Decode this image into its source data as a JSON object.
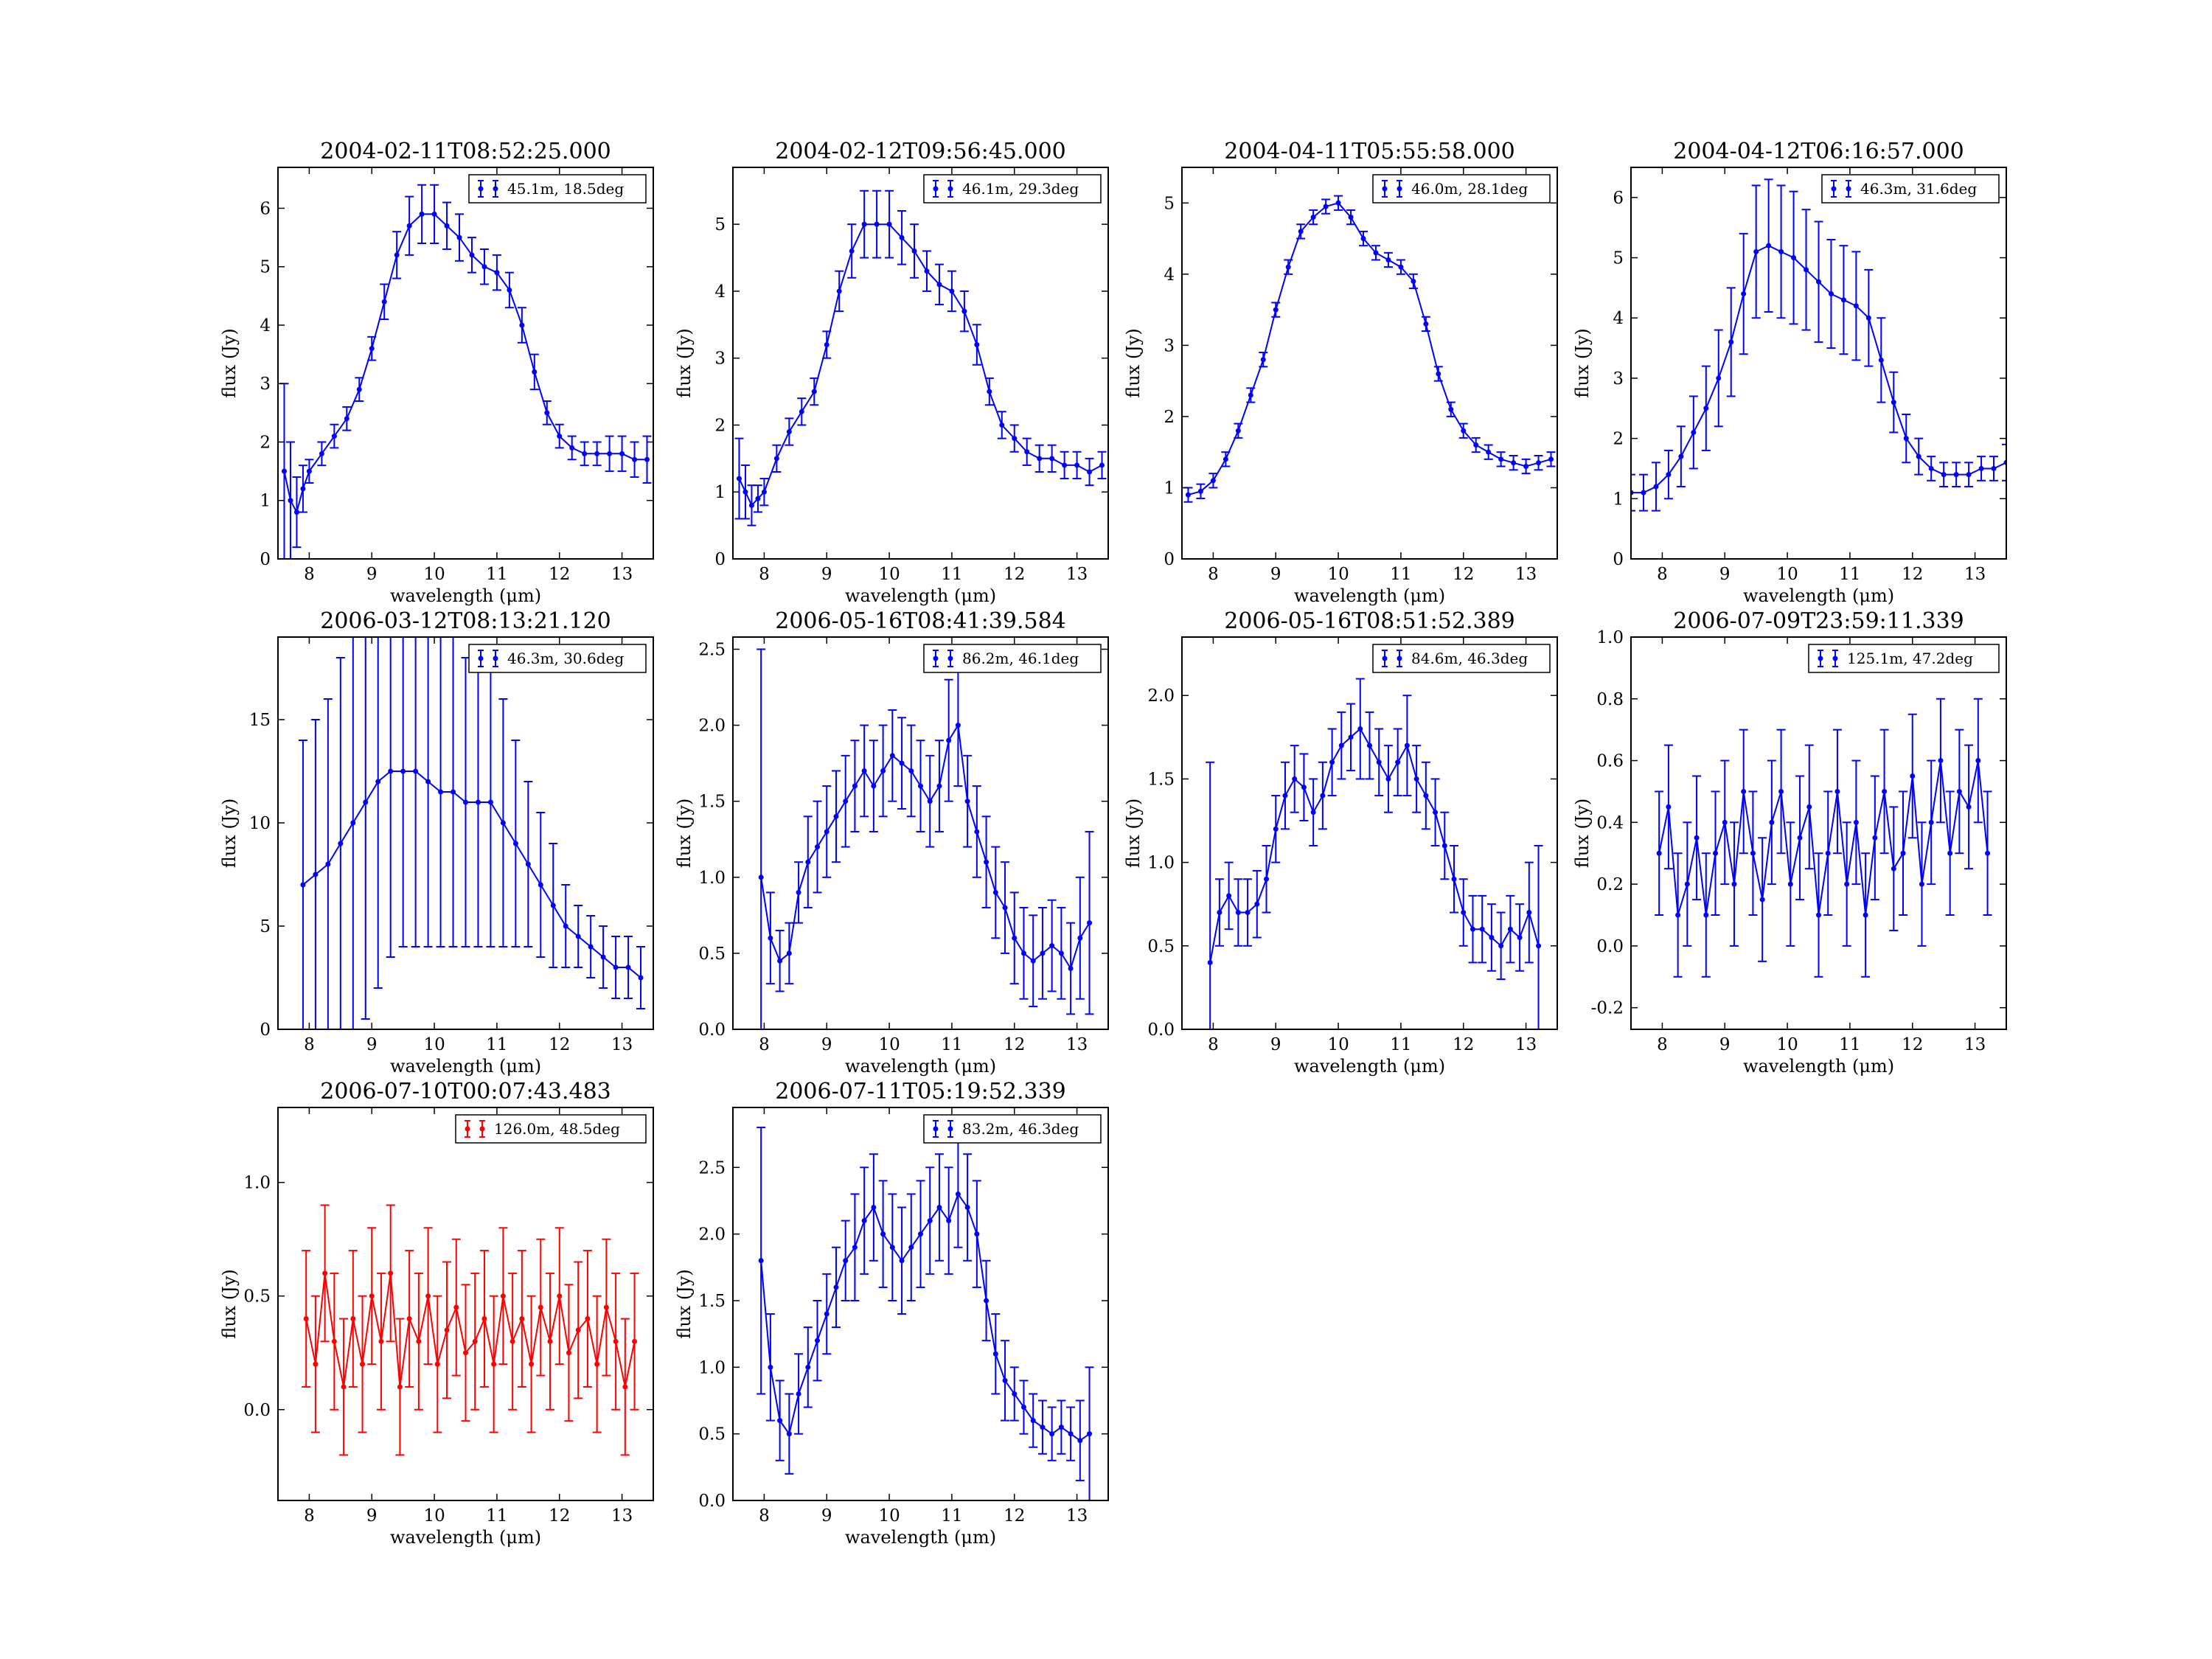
{
  "figure": {
    "background": "#ffffff"
  },
  "chart_data": [
    {
      "type": "scatter",
      "title": "2004-02-11T08:52:25.000",
      "xlabel": "wavelength (μm)",
      "ylabel": "flux (Jy)",
      "xlim": [
        7.5,
        13.5
      ],
      "ylim": [
        0,
        6.7
      ],
      "xticks": [
        8,
        9,
        10,
        11,
        12,
        13
      ],
      "yticks": [
        0,
        1,
        2,
        3,
        4,
        5,
        6
      ],
      "color": "#0000ff",
      "legend": "45.1m, 18.5deg",
      "legend_position": "top-right",
      "x": [
        7.6,
        7.7,
        7.8,
        7.9,
        8.0,
        8.2,
        8.4,
        8.6,
        8.8,
        9.0,
        9.2,
        9.4,
        9.6,
        9.8,
        10.0,
        10.2,
        10.4,
        10.6,
        10.8,
        11.0,
        11.2,
        11.4,
        11.6,
        11.8,
        12.0,
        12.2,
        12.4,
        12.6,
        12.8,
        13.0,
        13.2,
        13.4
      ],
      "y": [
        1.5,
        1.0,
        0.8,
        1.2,
        1.5,
        1.8,
        2.1,
        2.4,
        2.9,
        3.6,
        4.4,
        5.2,
        5.7,
        5.9,
        5.9,
        5.7,
        5.5,
        5.2,
        5.0,
        4.9,
        4.6,
        4.0,
        3.2,
        2.5,
        2.1,
        1.9,
        1.8,
        1.8,
        1.8,
        1.8,
        1.7,
        1.7
      ],
      "err": [
        1.5,
        1.0,
        0.6,
        0.4,
        0.2,
        0.2,
        0.2,
        0.2,
        0.2,
        0.2,
        0.3,
        0.4,
        0.5,
        0.5,
        0.5,
        0.4,
        0.4,
        0.3,
        0.3,
        0.3,
        0.3,
        0.3,
        0.3,
        0.2,
        0.2,
        0.2,
        0.2,
        0.2,
        0.3,
        0.3,
        0.3,
        0.4
      ]
    },
    {
      "type": "scatter",
      "title": "2004-02-12T09:56:45.000",
      "xlabel": "wavelength (μm)",
      "ylabel": "flux (Jy)",
      "xlim": [
        7.5,
        13.5
      ],
      "ylim": [
        0,
        5.85
      ],
      "xticks": [
        8,
        9,
        10,
        11,
        12,
        13
      ],
      "yticks": [
        0,
        1,
        2,
        3,
        4,
        5
      ],
      "color": "#0000ff",
      "legend": "46.1m, 29.3deg",
      "legend_position": "top-right",
      "x": [
        7.6,
        7.7,
        7.8,
        7.9,
        8.0,
        8.2,
        8.4,
        8.6,
        8.8,
        9.0,
        9.2,
        9.4,
        9.6,
        9.8,
        10.0,
        10.2,
        10.4,
        10.6,
        10.8,
        11.0,
        11.2,
        11.4,
        11.6,
        11.8,
        12.0,
        12.2,
        12.4,
        12.6,
        12.8,
        13.0,
        13.2,
        13.4
      ],
      "y": [
        1.2,
        1.0,
        0.8,
        0.9,
        1.0,
        1.5,
        1.9,
        2.2,
        2.5,
        3.2,
        4.0,
        4.6,
        5.0,
        5.0,
        5.0,
        4.8,
        4.6,
        4.3,
        4.1,
        4.0,
        3.7,
        3.2,
        2.5,
        2.0,
        1.8,
        1.6,
        1.5,
        1.5,
        1.4,
        1.4,
        1.3,
        1.4
      ],
      "err": [
        0.6,
        0.4,
        0.3,
        0.2,
        0.2,
        0.2,
        0.2,
        0.2,
        0.2,
        0.2,
        0.3,
        0.4,
        0.5,
        0.5,
        0.5,
        0.4,
        0.4,
        0.3,
        0.3,
        0.3,
        0.3,
        0.3,
        0.2,
        0.2,
        0.2,
        0.2,
        0.2,
        0.2,
        0.2,
        0.2,
        0.2,
        0.2
      ]
    },
    {
      "type": "scatter",
      "title": "2004-04-11T05:55:58.000",
      "xlabel": "wavelength (μm)",
      "ylabel": "flux (Jy)",
      "xlim": [
        7.5,
        13.5
      ],
      "ylim": [
        0,
        5.5
      ],
      "xticks": [
        8,
        9,
        10,
        11,
        12,
        13
      ],
      "yticks": [
        0,
        1,
        2,
        3,
        4,
        5
      ],
      "color": "#0000ff",
      "legend": "46.0m, 28.1deg",
      "legend_position": "top-right",
      "x": [
        7.6,
        7.8,
        8.0,
        8.2,
        8.4,
        8.6,
        8.8,
        9.0,
        9.2,
        9.4,
        9.6,
        9.8,
        10.0,
        10.2,
        10.4,
        10.6,
        10.8,
        11.0,
        11.2,
        11.4,
        11.6,
        11.8,
        12.0,
        12.2,
        12.4,
        12.6,
        12.8,
        13.0,
        13.2,
        13.4
      ],
      "y": [
        0.9,
        0.95,
        1.1,
        1.4,
        1.8,
        2.3,
        2.8,
        3.5,
        4.1,
        4.6,
        4.8,
        4.95,
        5.0,
        4.8,
        4.5,
        4.3,
        4.2,
        4.1,
        3.9,
        3.3,
        2.6,
        2.1,
        1.8,
        1.6,
        1.5,
        1.4,
        1.35,
        1.3,
        1.35,
        1.4
      ],
      "err": [
        0.1,
        0.1,
        0.1,
        0.1,
        0.1,
        0.1,
        0.1,
        0.1,
        0.1,
        0.1,
        0.1,
        0.1,
        0.1,
        0.1,
        0.1,
        0.1,
        0.1,
        0.1,
        0.1,
        0.1,
        0.1,
        0.1,
        0.1,
        0.1,
        0.1,
        0.1,
        0.1,
        0.1,
        0.1,
        0.1
      ]
    },
    {
      "type": "scatter",
      "title": "2004-04-12T06:16:57.000",
      "xlabel": "wavelength (μm)",
      "ylabel": "flux (Jy)",
      "xlim": [
        7.5,
        13.5
      ],
      "ylim": [
        0,
        6.5
      ],
      "xticks": [
        8,
        9,
        10,
        11,
        12,
        13
      ],
      "yticks": [
        0,
        1,
        2,
        3,
        4,
        5,
        6
      ],
      "color": "#0000ff",
      "legend": "46.3m, 31.6deg",
      "legend_position": "top-right",
      "x": [
        7.5,
        7.7,
        7.9,
        8.1,
        8.3,
        8.5,
        8.7,
        8.9,
        9.1,
        9.3,
        9.5,
        9.7,
        9.9,
        10.1,
        10.3,
        10.5,
        10.7,
        10.9,
        11.1,
        11.3,
        11.5,
        11.7,
        11.9,
        12.1,
        12.3,
        12.5,
        12.7,
        12.9,
        13.1,
        13.3,
        13.5
      ],
      "y": [
        1.1,
        1.1,
        1.2,
        1.4,
        1.7,
        2.1,
        2.5,
        3.0,
        3.6,
        4.4,
        5.1,
        5.2,
        5.1,
        5.0,
        4.8,
        4.6,
        4.4,
        4.3,
        4.2,
        4.0,
        3.3,
        2.6,
        2.0,
        1.7,
        1.5,
        1.4,
        1.4,
        1.4,
        1.5,
        1.5,
        1.6
      ],
      "err": [
        0.3,
        0.3,
        0.4,
        0.4,
        0.5,
        0.6,
        0.7,
        0.8,
        0.9,
        1.0,
        1.1,
        1.1,
        1.1,
        1.1,
        1.0,
        1.0,
        0.9,
        0.9,
        0.9,
        0.8,
        0.7,
        0.5,
        0.4,
        0.3,
        0.2,
        0.2,
        0.2,
        0.2,
        0.2,
        0.2,
        0.3
      ]
    },
    {
      "type": "scatter",
      "title": "2006-03-12T08:13:21.120",
      "xlabel": "wavelength (μm)",
      "ylabel": "flux (Jy)",
      "xlim": [
        7.5,
        13.5
      ],
      "ylim": [
        0,
        19
      ],
      "xticks": [
        8,
        9,
        10,
        11,
        12,
        13
      ],
      "yticks": [
        0,
        5,
        10,
        15
      ],
      "color": "#0000ff",
      "legend": "46.3m, 30.6deg",
      "legend_position": "top-right",
      "x": [
        7.9,
        8.1,
        8.3,
        8.5,
        8.7,
        8.9,
        9.1,
        9.3,
        9.5,
        9.7,
        9.9,
        10.1,
        10.3,
        10.5,
        10.7,
        10.9,
        11.1,
        11.3,
        11.5,
        11.7,
        11.9,
        12.1,
        12.3,
        12.5,
        12.7,
        12.9,
        13.1,
        13.3
      ],
      "y": [
        7.0,
        7.5,
        8.0,
        9.0,
        10.0,
        11.0,
        12.0,
        12.5,
        12.5,
        12.5,
        12.0,
        11.5,
        11.5,
        11.0,
        11.0,
        11.0,
        10.0,
        9.0,
        8.0,
        7.0,
        6.0,
        5.0,
        4.5,
        4.0,
        3.5,
        3.0,
        3.0,
        2.5
      ],
      "err": [
        7.0,
        7.5,
        8.0,
        9.0,
        10.0,
        10.5,
        10.0,
        9.0,
        8.5,
        8.5,
        8.0,
        7.5,
        7.5,
        7.0,
        7.0,
        7.0,
        6.0,
        5.0,
        4.0,
        3.5,
        3.0,
        2.0,
        1.5,
        1.5,
        1.5,
        1.5,
        1.5,
        1.5
      ]
    },
    {
      "type": "scatter",
      "title": "2006-05-16T08:41:39.584",
      "xlabel": "wavelength (μm)",
      "ylabel": "flux (Jy)",
      "xlim": [
        7.5,
        13.5
      ],
      "ylim": [
        0,
        2.58
      ],
      "xticks": [
        8,
        9,
        10,
        11,
        12,
        13
      ],
      "yticks": [
        0.0,
        0.5,
        1.0,
        1.5,
        2.0,
        2.5
      ],
      "color": "#0000ff",
      "legend": "86.2m, 46.1deg",
      "legend_position": "top-right",
      "x": [
        7.95,
        8.1,
        8.25,
        8.4,
        8.55,
        8.7,
        8.85,
        9.0,
        9.15,
        9.3,
        9.45,
        9.6,
        9.75,
        9.9,
        10.05,
        10.2,
        10.35,
        10.5,
        10.65,
        10.8,
        10.95,
        11.1,
        11.25,
        11.4,
        11.55,
        11.7,
        11.85,
        12.0,
        12.15,
        12.3,
        12.45,
        12.6,
        12.75,
        12.9,
        13.05,
        13.2
      ],
      "y": [
        1.0,
        0.6,
        0.45,
        0.5,
        0.9,
        1.1,
        1.2,
        1.3,
        1.4,
        1.5,
        1.6,
        1.7,
        1.6,
        1.7,
        1.8,
        1.75,
        1.7,
        1.6,
        1.5,
        1.6,
        1.9,
        2.0,
        1.5,
        1.3,
        1.1,
        0.9,
        0.8,
        0.6,
        0.5,
        0.45,
        0.5,
        0.55,
        0.5,
        0.4,
        0.6,
        0.7
      ],
      "err": [
        1.5,
        0.3,
        0.2,
        0.2,
        0.2,
        0.3,
        0.3,
        0.3,
        0.3,
        0.3,
        0.3,
        0.3,
        0.3,
        0.3,
        0.3,
        0.3,
        0.3,
        0.3,
        0.3,
        0.3,
        0.4,
        0.4,
        0.3,
        0.3,
        0.3,
        0.3,
        0.3,
        0.3,
        0.3,
        0.3,
        0.3,
        0.3,
        0.3,
        0.3,
        0.4,
        0.6
      ]
    },
    {
      "type": "scatter",
      "title": "2006-05-16T08:51:52.389",
      "xlabel": "wavelength (μm)",
      "ylabel": "flux (Jy)",
      "xlim": [
        7.5,
        13.5
      ],
      "ylim": [
        0,
        2.35
      ],
      "xticks": [
        8,
        9,
        10,
        11,
        12,
        13
      ],
      "yticks": [
        0.0,
        0.5,
        1.0,
        1.5,
        2.0
      ],
      "color": "#0000ff",
      "legend": "84.6m, 46.3deg",
      "legend_position": "top-right",
      "x": [
        7.95,
        8.1,
        8.25,
        8.4,
        8.55,
        8.7,
        8.85,
        9.0,
        9.15,
        9.3,
        9.45,
        9.6,
        9.75,
        9.9,
        10.05,
        10.2,
        10.35,
        10.5,
        10.65,
        10.8,
        10.95,
        11.1,
        11.25,
        11.4,
        11.55,
        11.7,
        11.85,
        12.0,
        12.15,
        12.3,
        12.45,
        12.6,
        12.75,
        12.9,
        13.05,
        13.2
      ],
      "y": [
        0.4,
        0.7,
        0.8,
        0.7,
        0.7,
        0.75,
        0.9,
        1.2,
        1.4,
        1.5,
        1.45,
        1.3,
        1.4,
        1.6,
        1.7,
        1.75,
        1.8,
        1.7,
        1.6,
        1.5,
        1.6,
        1.7,
        1.5,
        1.4,
        1.3,
        1.1,
        0.9,
        0.7,
        0.6,
        0.6,
        0.55,
        0.5,
        0.6,
        0.55,
        0.7,
        0.5
      ],
      "err": [
        1.2,
        0.2,
        0.2,
        0.2,
        0.2,
        0.2,
        0.2,
        0.2,
        0.2,
        0.2,
        0.2,
        0.2,
        0.2,
        0.2,
        0.2,
        0.2,
        0.3,
        0.2,
        0.2,
        0.2,
        0.2,
        0.3,
        0.2,
        0.2,
        0.2,
        0.2,
        0.2,
        0.2,
        0.2,
        0.2,
        0.2,
        0.2,
        0.2,
        0.2,
        0.3,
        0.6
      ]
    },
    {
      "type": "scatter",
      "title": "2006-07-09T23:59:11.339",
      "xlabel": "wavelength (μm)",
      "ylabel": "flux (Jy)",
      "xlim": [
        7.5,
        13.5
      ],
      "ylim": [
        -0.27,
        1.0
      ],
      "xticks": [
        8,
        9,
        10,
        11,
        12,
        13
      ],
      "yticks": [
        -0.2,
        0.0,
        0.2,
        0.4,
        0.6,
        0.8,
        1.0
      ],
      "color": "#0000ff",
      "legend": "125.1m, 47.2deg",
      "legend_position": "top-right",
      "x": [
        7.95,
        8.1,
        8.25,
        8.4,
        8.55,
        8.7,
        8.85,
        9.0,
        9.15,
        9.3,
        9.45,
        9.6,
        9.75,
        9.9,
        10.05,
        10.2,
        10.35,
        10.5,
        10.65,
        10.8,
        10.95,
        11.1,
        11.25,
        11.4,
        11.55,
        11.7,
        11.85,
        12.0,
        12.15,
        12.3,
        12.45,
        12.6,
        12.75,
        12.9,
        13.05,
        13.2
      ],
      "y": [
        0.3,
        0.45,
        0.1,
        0.2,
        0.35,
        0.1,
        0.3,
        0.4,
        0.2,
        0.5,
        0.3,
        0.15,
        0.4,
        0.5,
        0.2,
        0.35,
        0.45,
        0.1,
        0.3,
        0.5,
        0.2,
        0.4,
        0.1,
        0.35,
        0.5,
        0.25,
        0.3,
        0.55,
        0.2,
        0.4,
        0.6,
        0.3,
        0.5,
        0.45,
        0.6,
        0.3
      ],
      "err": [
        0.2,
        0.2,
        0.2,
        0.2,
        0.2,
        0.2,
        0.2,
        0.2,
        0.2,
        0.2,
        0.2,
        0.2,
        0.2,
        0.2,
        0.2,
        0.2,
        0.2,
        0.2,
        0.2,
        0.2,
        0.2,
        0.2,
        0.2,
        0.2,
        0.2,
        0.2,
        0.2,
        0.2,
        0.2,
        0.2,
        0.2,
        0.2,
        0.2,
        0.2,
        0.2,
        0.2
      ]
    },
    {
      "type": "scatter",
      "title": "2006-07-10T00:07:43.483",
      "xlabel": "wavelength (μm)",
      "ylabel": "flux (Jy)",
      "xlim": [
        7.5,
        13.5
      ],
      "ylim": [
        -0.4,
        1.33
      ],
      "xticks": [
        8,
        9,
        10,
        11,
        12,
        13
      ],
      "yticks": [
        0.0,
        0.5,
        1.0
      ],
      "color": "#ff0000",
      "legend": "126.0m, 48.5deg",
      "legend_position": "top-right",
      "x": [
        7.95,
        8.1,
        8.25,
        8.4,
        8.55,
        8.7,
        8.85,
        9.0,
        9.15,
        9.3,
        9.45,
        9.6,
        9.75,
        9.9,
        10.05,
        10.2,
        10.35,
        10.5,
        10.65,
        10.8,
        10.95,
        11.1,
        11.25,
        11.4,
        11.55,
        11.7,
        11.85,
        12.0,
        12.15,
        12.3,
        12.45,
        12.6,
        12.75,
        12.9,
        13.05,
        13.2
      ],
      "y": [
        0.4,
        0.2,
        0.6,
        0.3,
        0.1,
        0.4,
        0.2,
        0.5,
        0.3,
        0.6,
        0.1,
        0.4,
        0.3,
        0.5,
        0.2,
        0.35,
        0.45,
        0.25,
        0.3,
        0.4,
        0.2,
        0.5,
        0.3,
        0.4,
        0.2,
        0.45,
        0.3,
        0.5,
        0.25,
        0.35,
        0.4,
        0.2,
        0.45,
        0.3,
        0.1,
        0.3
      ],
      "err": [
        0.3,
        0.3,
        0.3,
        0.3,
        0.3,
        0.3,
        0.3,
        0.3,
        0.3,
        0.3,
        0.3,
        0.3,
        0.3,
        0.3,
        0.3,
        0.3,
        0.3,
        0.3,
        0.3,
        0.3,
        0.3,
        0.3,
        0.3,
        0.3,
        0.3,
        0.3,
        0.3,
        0.3,
        0.3,
        0.3,
        0.3,
        0.3,
        0.3,
        0.3,
        0.3,
        0.3
      ]
    },
    {
      "type": "scatter",
      "title": "2006-07-11T05:19:52.339",
      "xlabel": "wavelength (μm)",
      "ylabel": "flux (Jy)",
      "xlim": [
        7.5,
        13.5
      ],
      "ylim": [
        0,
        2.95
      ],
      "xticks": [
        8,
        9,
        10,
        11,
        12,
        13
      ],
      "yticks": [
        0.0,
        0.5,
        1.0,
        1.5,
        2.0,
        2.5
      ],
      "color": "#0000ff",
      "legend": "83.2m, 46.3deg",
      "legend_position": "top-right",
      "x": [
        7.95,
        8.1,
        8.25,
        8.4,
        8.55,
        8.7,
        8.85,
        9.0,
        9.15,
        9.3,
        9.45,
        9.6,
        9.75,
        9.9,
        10.05,
        10.2,
        10.35,
        10.5,
        10.65,
        10.8,
        10.95,
        11.1,
        11.25,
        11.4,
        11.55,
        11.7,
        11.85,
        12.0,
        12.15,
        12.3,
        12.45,
        12.6,
        12.75,
        12.9,
        13.05,
        13.2
      ],
      "y": [
        1.8,
        1.0,
        0.6,
        0.5,
        0.8,
        1.0,
        1.2,
        1.4,
        1.6,
        1.8,
        1.9,
        2.1,
        2.2,
        2.0,
        1.9,
        1.8,
        1.9,
        2.0,
        2.1,
        2.2,
        2.1,
        2.3,
        2.2,
        2.0,
        1.5,
        1.1,
        0.9,
        0.8,
        0.7,
        0.6,
        0.55,
        0.5,
        0.55,
        0.5,
        0.45,
        0.5
      ],
      "err": [
        1.0,
        0.4,
        0.3,
        0.3,
        0.3,
        0.3,
        0.3,
        0.3,
        0.3,
        0.3,
        0.4,
        0.4,
        0.4,
        0.4,
        0.4,
        0.4,
        0.4,
        0.4,
        0.4,
        0.4,
        0.4,
        0.4,
        0.4,
        0.4,
        0.3,
        0.3,
        0.3,
        0.2,
        0.2,
        0.2,
        0.2,
        0.2,
        0.2,
        0.2,
        0.3,
        0.5
      ]
    }
  ]
}
